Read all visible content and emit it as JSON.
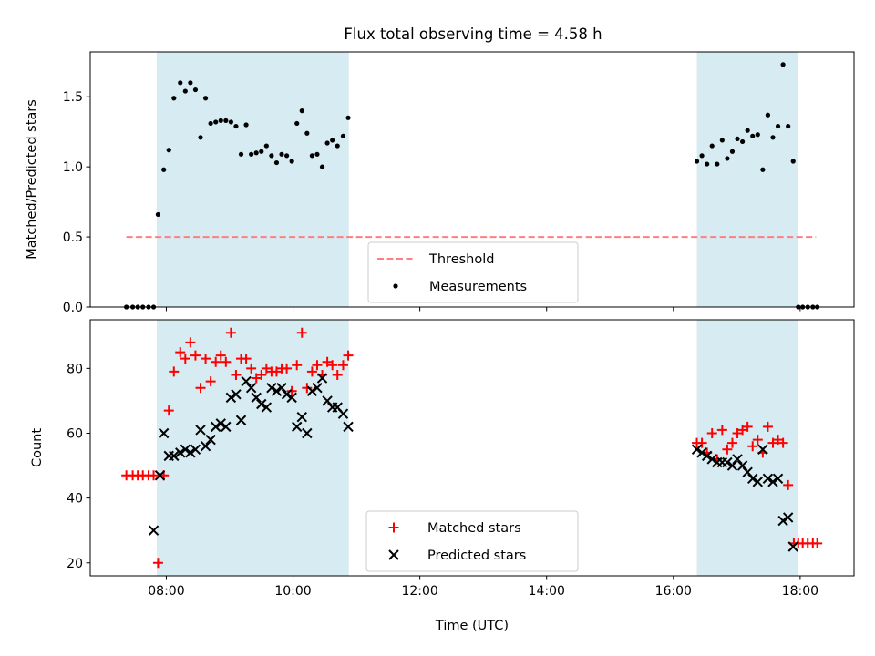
{
  "title": "Flux total observing time = 4.58 h",
  "colors": {
    "shade": "#add8e6",
    "threshold": "#ff7f7f",
    "measurements": "#000000",
    "matched": "#ff0000",
    "predicted": "#000000"
  },
  "chart_data": [
    {
      "type": "scatter",
      "ylabel": "Matched/Predicted stars",
      "ylim": [
        0,
        1.82
      ],
      "y_ticks": [
        "0.0",
        "0.5",
        "1.0",
        "1.5"
      ],
      "x_unit": "hours UTC",
      "xlim": [
        6.8,
        18.85
      ],
      "shaded_intervals": [
        [
          7.85,
          10.88
        ],
        [
          16.37,
          17.97
        ]
      ],
      "threshold": {
        "name": "Threshold",
        "value": 0.5,
        "x_range": [
          7.37,
          18.25
        ]
      },
      "legend": {
        "position": "bottom-center",
        "entries": [
          "Threshold",
          "Measurements"
        ]
      },
      "series": [
        {
          "name": "Measurements",
          "points": [
            [
              7.37,
              0.0
            ],
            [
              7.47,
              0.0
            ],
            [
              7.55,
              0.0
            ],
            [
              7.63,
              0.0
            ],
            [
              7.72,
              0.0
            ],
            [
              7.8,
              0.0
            ],
            [
              7.87,
              0.66
            ],
            [
              7.96,
              0.98
            ],
            [
              8.04,
              1.12
            ],
            [
              8.12,
              1.49
            ],
            [
              8.22,
              1.6
            ],
            [
              8.3,
              1.54
            ],
            [
              8.38,
              1.6
            ],
            [
              8.46,
              1.55
            ],
            [
              8.54,
              1.21
            ],
            [
              8.62,
              1.49
            ],
            [
              8.7,
              1.31
            ],
            [
              8.78,
              1.32
            ],
            [
              8.86,
              1.33
            ],
            [
              8.94,
              1.33
            ],
            [
              9.02,
              1.32
            ],
            [
              9.1,
              1.29
            ],
            [
              9.18,
              1.09
            ],
            [
              9.26,
              1.3
            ],
            [
              9.34,
              1.09
            ],
            [
              9.42,
              1.1
            ],
            [
              9.5,
              1.11
            ],
            [
              9.58,
              1.15
            ],
            [
              9.66,
              1.08
            ],
            [
              9.74,
              1.03
            ],
            [
              9.82,
              1.09
            ],
            [
              9.9,
              1.08
            ],
            [
              9.98,
              1.04
            ],
            [
              10.06,
              1.31
            ],
            [
              10.14,
              1.4
            ],
            [
              10.22,
              1.24
            ],
            [
              10.3,
              1.08
            ],
            [
              10.38,
              1.09
            ],
            [
              10.46,
              1.0
            ],
            [
              10.54,
              1.17
            ],
            [
              10.62,
              1.19
            ],
            [
              10.7,
              1.15
            ],
            [
              10.79,
              1.22
            ],
            [
              10.87,
              1.35
            ],
            [
              16.37,
              1.04
            ],
            [
              16.45,
              1.08
            ],
            [
              16.53,
              1.02
            ],
            [
              16.61,
              1.15
            ],
            [
              16.69,
              1.02
            ],
            [
              16.77,
              1.19
            ],
            [
              16.85,
              1.06
            ],
            [
              16.93,
              1.11
            ],
            [
              17.01,
              1.2
            ],
            [
              17.09,
              1.18
            ],
            [
              17.17,
              1.26
            ],
            [
              17.25,
              1.22
            ],
            [
              17.33,
              1.23
            ],
            [
              17.41,
              0.98
            ],
            [
              17.49,
              1.37
            ],
            [
              17.57,
              1.21
            ],
            [
              17.65,
              1.29
            ],
            [
              17.73,
              1.73
            ],
            [
              17.81,
              1.29
            ],
            [
              17.89,
              1.04
            ],
            [
              17.97,
              0.0
            ],
            [
              18.04,
              0.0
            ],
            [
              18.12,
              0.0
            ],
            [
              18.2,
              0.0
            ],
            [
              18.27,
              0.0
            ]
          ]
        }
      ]
    },
    {
      "type": "scatter",
      "ylabel": "Count",
      "xlabel": "Time (UTC)",
      "ylim": [
        16,
        95
      ],
      "y_ticks": [
        "20",
        "40",
        "60",
        "80"
      ],
      "x_ticks": [
        {
          "value": 8,
          "label": "08:00"
        },
        {
          "value": 10,
          "label": "10:00"
        },
        {
          "value": 12,
          "label": "12:00"
        },
        {
          "value": 14,
          "label": "14:00"
        },
        {
          "value": 16,
          "label": "16:00"
        },
        {
          "value": 18,
          "label": "18:00"
        }
      ],
      "xlim": [
        6.8,
        18.85
      ],
      "shaded_intervals": [
        [
          7.85,
          10.88
        ],
        [
          16.37,
          17.97
        ]
      ],
      "legend": {
        "position": "bottom-center",
        "entries": [
          "Matched stars",
          "Predicted stars"
        ]
      },
      "series": [
        {
          "name": "Matched stars",
          "marker": "plus",
          "points": [
            [
              7.37,
              47
            ],
            [
              7.47,
              47
            ],
            [
              7.55,
              47
            ],
            [
              7.63,
              47
            ],
            [
              7.72,
              47
            ],
            [
              7.8,
              47
            ],
            [
              7.87,
              20
            ],
            [
              7.96,
              47
            ],
            [
              8.04,
              67
            ],
            [
              8.12,
              79
            ],
            [
              8.22,
              85
            ],
            [
              8.3,
              83
            ],
            [
              8.38,
              88
            ],
            [
              8.46,
              84
            ],
            [
              8.54,
              74
            ],
            [
              8.62,
              83
            ],
            [
              8.7,
              76
            ],
            [
              8.78,
              82
            ],
            [
              8.86,
              84
            ],
            [
              8.94,
              82
            ],
            [
              9.02,
              91
            ],
            [
              9.1,
              78
            ],
            [
              9.18,
              83
            ],
            [
              9.26,
              83
            ],
            [
              9.34,
              80
            ],
            [
              9.42,
              77
            ],
            [
              9.5,
              78
            ],
            [
              9.58,
              80
            ],
            [
              9.66,
              79
            ],
            [
              9.74,
              79
            ],
            [
              9.82,
              80
            ],
            [
              9.9,
              80
            ],
            [
              9.98,
              73
            ],
            [
              10.06,
              81
            ],
            [
              10.14,
              91
            ],
            [
              10.22,
              74
            ],
            [
              10.3,
              79
            ],
            [
              10.38,
              81
            ],
            [
              10.46,
              78
            ],
            [
              10.54,
              82
            ],
            [
              10.62,
              81
            ],
            [
              10.7,
              78
            ],
            [
              10.79,
              81
            ],
            [
              10.87,
              84
            ],
            [
              16.37,
              57
            ],
            [
              16.45,
              57
            ],
            [
              16.53,
              54
            ],
            [
              16.61,
              60
            ],
            [
              16.69,
              52
            ],
            [
              16.77,
              61
            ],
            [
              16.85,
              55
            ],
            [
              16.93,
              57
            ],
            [
              17.01,
              60
            ],
            [
              17.09,
              61
            ],
            [
              17.17,
              62
            ],
            [
              17.25,
              56
            ],
            [
              17.33,
              58
            ],
            [
              17.41,
              54
            ],
            [
              17.49,
              62
            ],
            [
              17.57,
              57
            ],
            [
              17.65,
              58
            ],
            [
              17.73,
              57
            ],
            [
              17.81,
              44
            ],
            [
              17.9,
              26
            ],
            [
              17.97,
              26
            ],
            [
              18.04,
              26
            ],
            [
              18.12,
              26
            ],
            [
              18.2,
              26
            ],
            [
              18.27,
              26
            ]
          ]
        },
        {
          "name": "Predicted stars",
          "marker": "x",
          "points": [
            [
              7.8,
              30
            ],
            [
              7.9,
              47
            ],
            [
              7.96,
              60
            ],
            [
              8.04,
              53
            ],
            [
              8.12,
              53
            ],
            [
              8.22,
              54
            ],
            [
              8.3,
              55
            ],
            [
              8.38,
              54
            ],
            [
              8.46,
              55
            ],
            [
              8.54,
              61
            ],
            [
              8.62,
              56
            ],
            [
              8.7,
              58
            ],
            [
              8.78,
              62
            ],
            [
              8.86,
              63
            ],
            [
              8.94,
              62
            ],
            [
              9.02,
              71
            ],
            [
              9.1,
              72
            ],
            [
              9.18,
              64
            ],
            [
              9.26,
              76
            ],
            [
              9.34,
              74
            ],
            [
              9.42,
              71
            ],
            [
              9.5,
              69
            ],
            [
              9.58,
              68
            ],
            [
              9.66,
              74
            ],
            [
              9.74,
              73
            ],
            [
              9.82,
              74
            ],
            [
              9.9,
              72
            ],
            [
              9.98,
              71
            ],
            [
              10.06,
              62
            ],
            [
              10.14,
              65
            ],
            [
              10.22,
              60
            ],
            [
              10.3,
              73
            ],
            [
              10.38,
              74
            ],
            [
              10.46,
              77
            ],
            [
              10.54,
              70
            ],
            [
              10.62,
              68
            ],
            [
              10.7,
              68
            ],
            [
              10.79,
              66
            ],
            [
              10.87,
              62
            ],
            [
              16.37,
              55
            ],
            [
              16.45,
              54
            ],
            [
              16.53,
              53
            ],
            [
              16.61,
              52
            ],
            [
              16.69,
              51
            ],
            [
              16.77,
              51
            ],
            [
              16.85,
              51
            ],
            [
              16.93,
              50
            ],
            [
              17.01,
              52
            ],
            [
              17.09,
              50
            ],
            [
              17.17,
              48
            ],
            [
              17.25,
              46
            ],
            [
              17.33,
              45
            ],
            [
              17.41,
              55
            ],
            [
              17.49,
              46
            ],
            [
              17.57,
              45
            ],
            [
              17.65,
              46
            ],
            [
              17.73,
              33
            ],
            [
              17.81,
              34
            ],
            [
              17.89,
              25
            ]
          ]
        }
      ]
    }
  ]
}
